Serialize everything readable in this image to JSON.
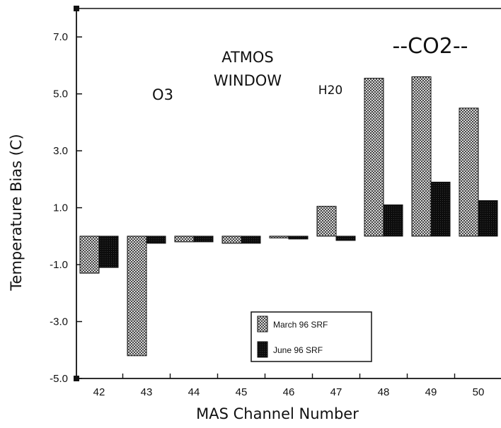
{
  "chart_data": {
    "type": "bar",
    "title": "",
    "xlabel": "MAS Channel Number",
    "ylabel": "Temperature Bias (C)",
    "categories": [
      "42",
      "43",
      "44",
      "45",
      "46",
      "47",
      "48",
      "49",
      "50"
    ],
    "y_ticks": [
      "7.0",
      "5.0",
      "3.0",
      "1.0",
      "-1.0",
      "-3.0",
      "-5.0"
    ],
    "ylim": [
      -5.0,
      8.0
    ],
    "grid": false,
    "legend_position": "bottom-right",
    "series": [
      {
        "name": "March 96 SRF",
        "pattern": "crosshatch",
        "values": [
          -1.3,
          -4.2,
          -0.2,
          -0.25,
          -0.05,
          1.05,
          5.55,
          5.6,
          4.5
        ]
      },
      {
        "name": "June 96 SRF",
        "pattern": "solid",
        "values": [
          -1.1,
          -0.25,
          -0.2,
          -0.25,
          -0.1,
          -0.15,
          1.1,
          1.9,
          1.25
        ]
      }
    ],
    "annotations": {
      "o3": "O3",
      "atmos_line1": "ATMOS",
      "atmos_line2": "WINDOW",
      "h2o": "H20",
      "co2": "--CO2--"
    }
  }
}
